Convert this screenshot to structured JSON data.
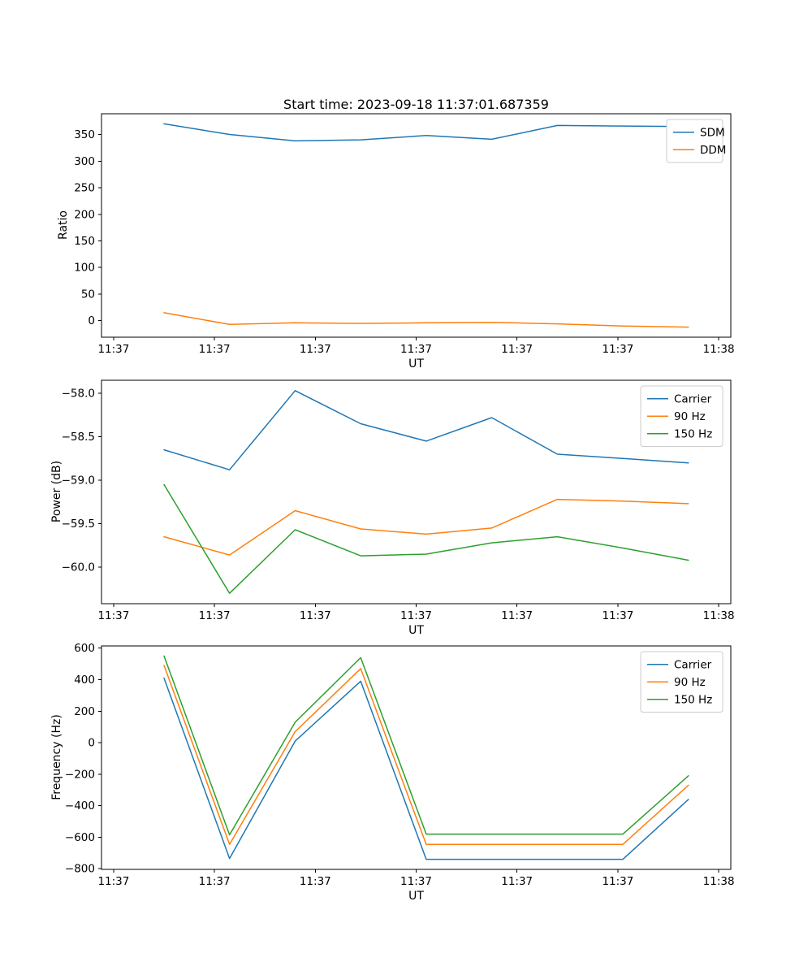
{
  "figure": {
    "background": "#ffffff",
    "title": "Start time: 2023-09-18 11:37:01.687359"
  },
  "chart_data": [
    {
      "type": "line",
      "title": "Start time: 2023-09-18 11:37:01.687359",
      "xlabel": "UT",
      "ylabel": "Ratio",
      "grid": false,
      "legend_position": "upper right",
      "xlim": [
        -1.2,
        61.2
      ],
      "ylim": [
        -31,
        389
      ],
      "x_tick_values": [
        0,
        10,
        20,
        30,
        40,
        50,
        60
      ],
      "x_tick_labels": [
        "11:37",
        "11:37",
        "11:37",
        "11:37",
        "11:37",
        "11:37",
        "11:38"
      ],
      "y_ticks": [
        0,
        50,
        100,
        150,
        200,
        250,
        300,
        350
      ],
      "y_tick_labels": [
        "0",
        "50",
        "100",
        "150",
        "200",
        "250",
        "300",
        "350"
      ],
      "x": [
        5,
        11.5,
        18,
        24.5,
        31,
        37.5,
        44,
        50.5,
        57
      ],
      "series": [
        {
          "name": "SDM",
          "color": "#1f77b4",
          "values": [
            370,
            350,
            338,
            340,
            348,
            341,
            367,
            366,
            365
          ]
        },
        {
          "name": "DDM",
          "color": "#ff7f0e",
          "values": [
            15,
            -7,
            -4,
            -5,
            -4,
            -3,
            -6,
            -10,
            -12
          ]
        }
      ]
    },
    {
      "type": "line",
      "title": "",
      "xlabel": "UT",
      "ylabel": "Power (dB)",
      "grid": false,
      "legend_position": "upper right",
      "xlim": [
        -1.2,
        61.2
      ],
      "ylim": [
        -60.42,
        -57.85
      ],
      "x_tick_values": [
        0,
        10,
        20,
        30,
        40,
        50,
        60
      ],
      "x_tick_labels": [
        "11:37",
        "11:37",
        "11:37",
        "11:37",
        "11:37",
        "11:37",
        "11:38"
      ],
      "y_ticks": [
        -58.0,
        -58.5,
        -59.0,
        -59.5,
        -60.0
      ],
      "y_tick_labels": [
        "−58.0",
        "−58.5",
        "−59.0",
        "−59.5",
        "−60.0"
      ],
      "x": [
        5,
        11.5,
        18,
        24.5,
        31,
        37.5,
        44,
        50.5,
        57
      ],
      "series": [
        {
          "name": "Carrier",
          "color": "#1f77b4",
          "values": [
            -58.65,
            -58.88,
            -57.97,
            -58.35,
            -58.55,
            -58.28,
            -58.7,
            -58.75,
            -58.8
          ]
        },
        {
          "name": "90 Hz",
          "color": "#ff7f0e",
          "values": [
            -59.65,
            -59.86,
            -59.35,
            -59.56,
            -59.62,
            -59.55,
            -59.22,
            -59.24,
            -59.27
          ]
        },
        {
          "name": "150 Hz",
          "color": "#2ca02c",
          "values": [
            -59.05,
            -60.3,
            -59.57,
            -59.87,
            -59.85,
            -59.72,
            -59.65,
            -59.78,
            -59.92
          ]
        }
      ]
    },
    {
      "type": "line",
      "title": "",
      "xlabel": "UT",
      "ylabel": "Frequency (Hz)",
      "grid": false,
      "legend_position": "upper right",
      "xlim": [
        -1.2,
        61.2
      ],
      "ylim": [
        -804,
        614
      ],
      "x_tick_values": [
        0,
        10,
        20,
        30,
        40,
        50,
        60
      ],
      "x_tick_labels": [
        "11:37",
        "11:37",
        "11:37",
        "11:37",
        "11:37",
        "11:37",
        "11:38"
      ],
      "y_ticks": [
        -800,
        -600,
        -400,
        -200,
        0,
        200,
        400,
        600
      ],
      "y_tick_labels": [
        "−800",
        "−600",
        "−400",
        "−200",
        "0",
        "200",
        "400",
        "600"
      ],
      "x": [
        5,
        11.5,
        18,
        24.5,
        31,
        37.5,
        44,
        50.5,
        57
      ],
      "series": [
        {
          "name": "Carrier",
          "color": "#1f77b4",
          "values": [
            410,
            -735,
            10,
            390,
            -740,
            -740,
            -740,
            -740,
            -360
          ]
        },
        {
          "name": "90 Hz",
          "color": "#ff7f0e",
          "values": [
            490,
            -645,
            70,
            470,
            -645,
            -645,
            -645,
            -645,
            -270
          ]
        },
        {
          "name": "150 Hz",
          "color": "#2ca02c",
          "values": [
            550,
            -585,
            130,
            540,
            -580,
            -580,
            -580,
            -580,
            -210
          ]
        }
      ]
    }
  ]
}
